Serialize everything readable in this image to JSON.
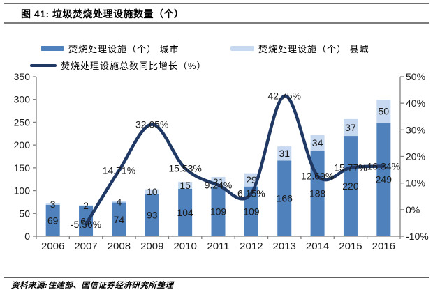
{
  "title": "图 41: 垃圾焚烧处理设施数量（个）",
  "source": "资料来源:住建部、国信证券经济研究所整理",
  "colors": {
    "city_bar": "#4f81bd",
    "county_bar": "#c6d9f0",
    "growth_line": "#1f3864",
    "axis": "#7f7f7f",
    "text": "#1a1a1a"
  },
  "legend": [
    {
      "label": "焚烧处理设施（个） 城市",
      "color": "#4f81bd",
      "type": "bar"
    },
    {
      "label": "焚烧处理设施（个） 县城",
      "color": "#c6d9f0",
      "type": "bar"
    },
    {
      "label": "焚烧处理设施总数同比增长（%）",
      "color": "#1f3864",
      "type": "line"
    }
  ],
  "chart_data": {
    "type": "bar",
    "subtype": "stacked-bar-with-line",
    "title": "垃圾焚烧处理设施数量（个）",
    "grid": false,
    "legend_position": "top",
    "categories": [
      "2006",
      "2007",
      "2008",
      "2009",
      "2010",
      "2011",
      "2012",
      "2013",
      "2014",
      "2015",
      "2016"
    ],
    "series": [
      {
        "name": "焚烧处理设施（个） 城市",
        "type": "bar",
        "stack": "total",
        "axis": "left",
        "color": "#4f81bd",
        "values": [
          69,
          66,
          74,
          93,
          104,
          109,
          109,
          166,
          188,
          220,
          249
        ]
      },
      {
        "name": "焚烧处理设施（个） 县城",
        "type": "bar",
        "stack": "total",
        "axis": "left",
        "color": "#c6d9f0",
        "values": [
          3,
          2,
          4,
          10,
          15,
          21,
          29,
          31,
          34,
          37,
          50
        ]
      },
      {
        "name": "焚烧处理设施总数同比增长（%）",
        "type": "line",
        "smooth": true,
        "axis": "right",
        "color": "#1f3864",
        "values": [
          null,
          -5.56,
          14.71,
          32.05,
          15.53,
          9.24,
          6.15,
          42.75,
          12.69,
          15.77,
          16.34
        ],
        "labels": [
          null,
          "-5.56%",
          "14.71%",
          "32.05%",
          "15.53%",
          "9.24%",
          "6.15%",
          "42.75%",
          "12.69%",
          "15.77%",
          "16.34%"
        ]
      }
    ],
    "left_axis": {
      "min": 0,
      "max": 350,
      "step": 50,
      "ticks": [
        "0",
        "50",
        "100",
        "150",
        "200",
        "250",
        "300",
        "350"
      ]
    },
    "right_axis": {
      "min": -10,
      "max": 50,
      "step": 10,
      "ticks": [
        "-10%",
        "0%",
        "10%",
        "20%",
        "30%",
        "40%",
        "50%"
      ]
    }
  }
}
